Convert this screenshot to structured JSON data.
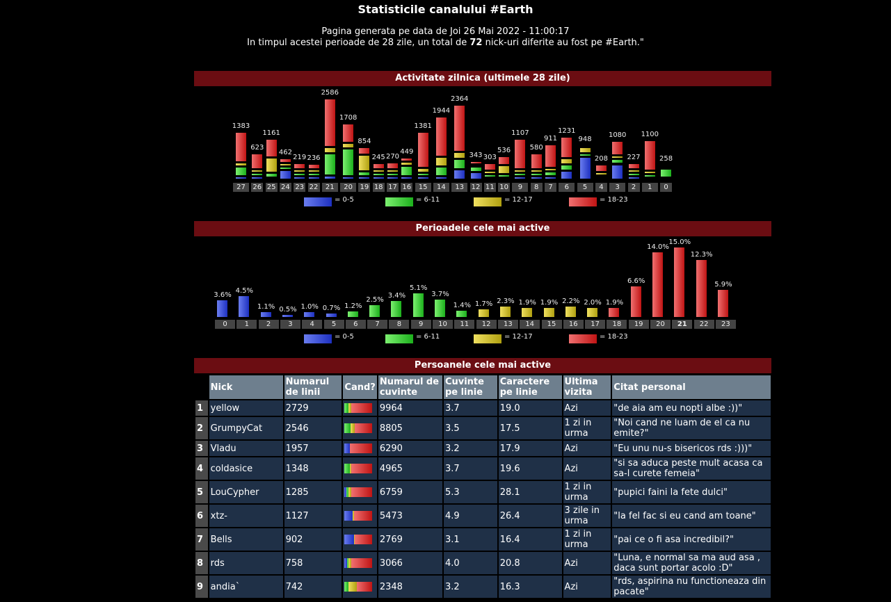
{
  "title": "Statisticile canalului #Earth",
  "generated": "Pagina generata pe data de Joi 26 Mai 2022 - 11:00:17",
  "period_text_pre": "In timpul acestei perioade de 28 zile, un total de ",
  "period_count": "72",
  "period_text_post": " nick-uri diferite au fost pe #Earth.\"",
  "colors": {
    "0-5": "#3346d8",
    "6-11": "#3ccc3c",
    "12-17": "#d8c830",
    "18-23": "#d83030",
    "header": "#6b0d12"
  },
  "daily": {
    "title": "Activitate zilnica (ultimele 28 zile)",
    "legend": [
      "= 0-5",
      "= 6-11",
      "= 12-17",
      "= 18-23"
    ],
    "days": [
      {
        "label": "27",
        "total": "1383",
        "split": [
          20,
          280,
          60,
          1023
        ]
      },
      {
        "label": "26",
        "total": "623",
        "split": [
          23,
          50,
          50,
          500
        ]
      },
      {
        "label": "25",
        "total": "1161",
        "split": [
          0,
          100,
          461,
          600
        ]
      },
      {
        "label": "24",
        "total": "462",
        "split": [
          262,
          60,
          40,
          100
        ]
      },
      {
        "label": "23",
        "total": "219",
        "split": [
          10,
          30,
          40,
          139
        ]
      },
      {
        "label": "22",
        "total": "236",
        "split": [
          20,
          50,
          40,
          126
        ]
      },
      {
        "label": "21",
        "total": "2586",
        "split": [
          70,
          720,
          150,
          1646
        ]
      },
      {
        "label": "20",
        "total": "1708",
        "split": [
          60,
          900,
          130,
          618
        ]
      },
      {
        "label": "19",
        "total": "854",
        "split": [
          30,
          100,
          520,
          204
        ]
      },
      {
        "label": "18",
        "total": "245",
        "split": [
          20,
          60,
          30,
          135
        ]
      },
      {
        "label": "17",
        "total": "270",
        "split": [
          20,
          40,
          30,
          180
        ]
      },
      {
        "label": "16",
        "total": "449",
        "split": [
          10,
          300,
          60,
          79
        ]
      },
      {
        "label": "15",
        "total": "1381",
        "split": [
          20,
          60,
          80,
          1221
        ]
      },
      {
        "label": "14",
        "total": "1944",
        "split": [
          60,
          270,
          260,
          1354
        ]
      },
      {
        "label": "13",
        "total": "2364",
        "split": [
          300,
          280,
          180,
          1604
        ]
      },
      {
        "label": "12",
        "total": "343",
        "split": [
          200,
          110,
          0,
          33
        ]
      },
      {
        "label": "11",
        "total": "303",
        "split": [
          0,
          50,
          60,
          193
        ]
      },
      {
        "label": "10",
        "total": "536",
        "split": [
          0,
          40,
          250,
          246
        ]
      },
      {
        "label": "9",
        "total": "1107",
        "split": [
          20,
          30,
          40,
          1017
        ]
      },
      {
        "label": "8",
        "total": "580",
        "split": [
          10,
          20,
          60,
          490
        ]
      },
      {
        "label": "7",
        "total": "911",
        "split": [
          20,
          90,
          40,
          761
        ]
      },
      {
        "label": "6",
        "total": "1231",
        "split": [
          250,
          150,
          150,
          681
        ]
      },
      {
        "label": "5",
        "total": "948",
        "split": [
          730,
          50,
          168,
          0
        ]
      },
      {
        "label": "4",
        "total": "208",
        "split": [
          0,
          0,
          20,
          188
        ]
      },
      {
        "label": "3",
        "total": "1080",
        "split": [
          480,
          110,
          40,
          450
        ]
      },
      {
        "label": "2",
        "total": "227",
        "split": [
          20,
          30,
          40,
          137
        ]
      },
      {
        "label": "1",
        "total": "1100",
        "split": [
          0,
          40,
          60,
          1000
        ]
      },
      {
        "label": "0",
        "total": "258",
        "split": [
          0,
          258,
          0,
          0
        ]
      }
    ]
  },
  "hourly": {
    "title": "Perioadele cele mai active",
    "legend": [
      "= 0-5",
      "= 6-11",
      "= 12-17",
      "= 18-23"
    ],
    "current_hour": "21",
    "hours": [
      {
        "h": "0",
        "pct": 3.6,
        "label": "3.6%"
      },
      {
        "h": "1",
        "pct": 4.5,
        "label": "4.5%"
      },
      {
        "h": "2",
        "pct": 1.1,
        "label": "1.1%"
      },
      {
        "h": "3",
        "pct": 0.5,
        "label": "0.5%"
      },
      {
        "h": "4",
        "pct": 1.0,
        "label": "1.0%"
      },
      {
        "h": "5",
        "pct": 0.7,
        "label": "0.7%"
      },
      {
        "h": "6",
        "pct": 1.2,
        "label": "1.2%"
      },
      {
        "h": "7",
        "pct": 2.5,
        "label": "2.5%"
      },
      {
        "h": "8",
        "pct": 3.4,
        "label": "3.4%"
      },
      {
        "h": "9",
        "pct": 5.1,
        "label": "5.1%"
      },
      {
        "h": "10",
        "pct": 3.7,
        "label": "3.7%"
      },
      {
        "h": "11",
        "pct": 1.4,
        "label": "1.4%"
      },
      {
        "h": "12",
        "pct": 1.7,
        "label": "1.7%"
      },
      {
        "h": "13",
        "pct": 2.3,
        "label": "2.3%"
      },
      {
        "h": "14",
        "pct": 1.9,
        "label": "1.9%"
      },
      {
        "h": "15",
        "pct": 1.9,
        "label": "1.9%"
      },
      {
        "h": "16",
        "pct": 2.2,
        "label": "2.2%"
      },
      {
        "h": "17",
        "pct": 2.0,
        "label": "2.0%"
      },
      {
        "h": "18",
        "pct": 1.9,
        "label": "1.9%"
      },
      {
        "h": "19",
        "pct": 6.6,
        "label": "6.6%"
      },
      {
        "h": "20",
        "pct": 14.0,
        "label": "14.0%"
      },
      {
        "h": "21",
        "pct": 15.0,
        "label": "15.0%"
      },
      {
        "h": "22",
        "pct": 12.3,
        "label": "12.3%"
      },
      {
        "h": "23",
        "pct": 5.9,
        "label": "5.9%"
      }
    ]
  },
  "people": {
    "title": "Persoanele cele mai active",
    "columns": [
      "Nick",
      "Numarul de linii",
      "Cand?",
      "Numarul de cuvinte",
      "Cuvinte pe linie",
      "Caractere pe linie",
      "Ultima vizita",
      "Citat personal"
    ],
    "rows": [
      {
        "rank": "1",
        "nick": "yellow",
        "lines": "2729",
        "when": [
          0,
          0.15,
          0.1,
          0.75
        ],
        "words": "9964",
        "wpl": "3.7",
        "cpl": "19.0",
        "last": "Azi",
        "quote": "\"de aia am eu nopti albe :))\""
      },
      {
        "rank": "2",
        "nick": "GrumpyCat",
        "lines": "2546",
        "when": [
          0,
          0.22,
          0.15,
          0.63
        ],
        "words": "8805",
        "wpl": "3.5",
        "cpl": "17.5",
        "last": "1 zi in urma",
        "quote": "\"Noi cand ne luam de el ca nu emite?\""
      },
      {
        "rank": "3",
        "nick": "Vladu",
        "lines": "1957",
        "when": [
          0.18,
          0,
          0.02,
          0.8
        ],
        "words": "6290",
        "wpl": "3.2",
        "cpl": "17.9",
        "last": "Azi",
        "quote": "\"Eu unu nu-s bisericos rds :)))\""
      },
      {
        "rank": "4",
        "nick": "coldasice",
        "lines": "1348",
        "when": [
          0,
          0.2,
          0.05,
          0.75
        ],
        "words": "4965",
        "wpl": "3.7",
        "cpl": "19.6",
        "last": "Azi",
        "quote": "\"si sa aduca peste mult acasa ca sa-l curete femeia\""
      },
      {
        "rank": "5",
        "nick": "LouCypher",
        "lines": "1285",
        "when": [
          0.07,
          0.07,
          0.1,
          0.76
        ],
        "words": "6759",
        "wpl": "5.3",
        "cpl": "28.1",
        "last": "1 zi in urma",
        "quote": "\"pupici faini la fete dulci\""
      },
      {
        "rank": "6",
        "nick": "xtz-",
        "lines": "1127",
        "when": [
          0.3,
          0,
          0.03,
          0.67
        ],
        "words": "5473",
        "wpl": "4.9",
        "cpl": "26.4",
        "last": "3 zile in urma",
        "quote": "\"la fel fac si eu cand am toane\""
      },
      {
        "rank": "7",
        "nick": "Bells",
        "lines": "902",
        "when": [
          0.33,
          0,
          0.03,
          0.64
        ],
        "words": "2769",
        "wpl": "3.1",
        "cpl": "16.4",
        "last": "1 zi in urma",
        "quote": "\"pai ce o fi asa incredibil?\""
      },
      {
        "rank": "8",
        "nick": "rds",
        "lines": "758",
        "when": [
          0.1,
          0.05,
          0.1,
          0.75
        ],
        "words": "3066",
        "wpl": "4.0",
        "cpl": "20.8",
        "last": "Azi",
        "quote": "\"Luna, e normal sa ma aud asa , daca sunt portar acolo :D\""
      },
      {
        "rank": "9",
        "nick": "andia`",
        "lines": "742",
        "when": [
          0,
          0.15,
          0.3,
          0.55
        ],
        "words": "2348",
        "wpl": "3.2",
        "cpl": "16.3",
        "last": "Azi",
        "quote": "\"rds, aspirina nu functioneaza din pacate\""
      }
    ]
  }
}
